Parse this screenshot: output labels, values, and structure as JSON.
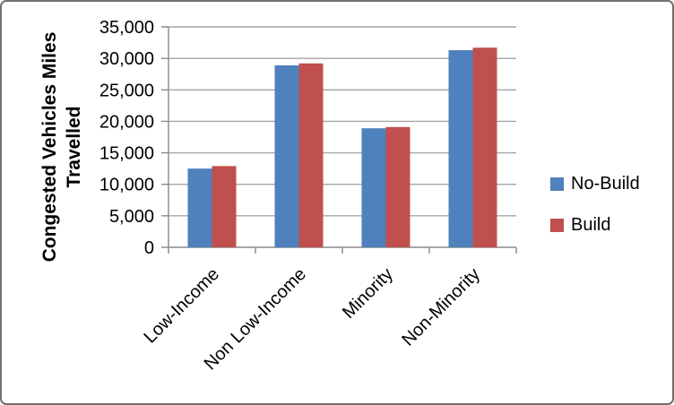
{
  "window": {
    "background": "#FFFFFF",
    "border_color": "#707070"
  },
  "chart_data": {
    "type": "bar",
    "title": "",
    "xlabel": "",
    "ylabel": "Congested Vehicles Miles Travelled",
    "ylabel_lines": [
      "Congested Vehicles Miles",
      "Travelled"
    ],
    "categories": [
      "Low-Income",
      "Non Low-Income",
      "Minority",
      "Non-Minority"
    ],
    "series": [
      {
        "name": "No-Build",
        "color": "#4F81BD",
        "values": [
          12500,
          28900,
          18900,
          31300
        ]
      },
      {
        "name": "Build",
        "color": "#C0504D",
        "values": [
          12900,
          29200,
          19100,
          31700
        ]
      }
    ],
    "ylim": [
      0,
      35000
    ],
    "ytick_step": 5000,
    "ytick_labels": [
      "0",
      "5,000",
      "10,000",
      "15,000",
      "20,000",
      "25,000",
      "30,000",
      "35,000"
    ],
    "grid": true,
    "legend_position": "right",
    "gridline_color": "#A5A5A5",
    "axis_color": "#898989",
    "text_color": "#000000"
  }
}
